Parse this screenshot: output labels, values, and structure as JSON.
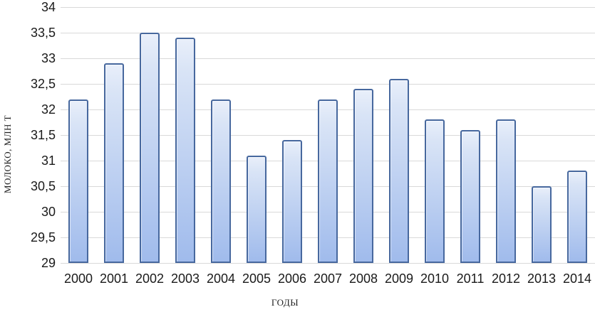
{
  "chart_data": {
    "type": "bar",
    "title": "",
    "categories": [
      "2000",
      "2001",
      "2002",
      "2003",
      "2004",
      "2005",
      "2006",
      "2007",
      "2008",
      "2009",
      "2010",
      "2011",
      "2012",
      "2013",
      "2014"
    ],
    "values": [
      32.2,
      32.9,
      33.5,
      33.4,
      32.2,
      31.1,
      31.4,
      32.2,
      32.4,
      32.6,
      31.8,
      31.6,
      31.8,
      30.5,
      30.8
    ],
    "xlabel": "ГОДЫ",
    "ylabel": "МОЛОКО, МЛН Т",
    "ylim": [
      29,
      34
    ],
    "ytick_step": 0.5,
    "ytick_labels_top_to_bottom": [
      "34",
      "33,5",
      "33",
      "32,5",
      "32",
      "31,5",
      "31",
      "30,5",
      "30",
      "29,5",
      "29"
    ],
    "grid": true,
    "legend": "none",
    "decimal_separator": ",",
    "colors": {
      "bar_fill_top": "#e9effa",
      "bar_fill_bottom": "#a0bbec",
      "bar_border": "#47689e",
      "gridline": "#d9d9d9",
      "text": "#1a1a1a",
      "background": "#ffffff"
    }
  }
}
